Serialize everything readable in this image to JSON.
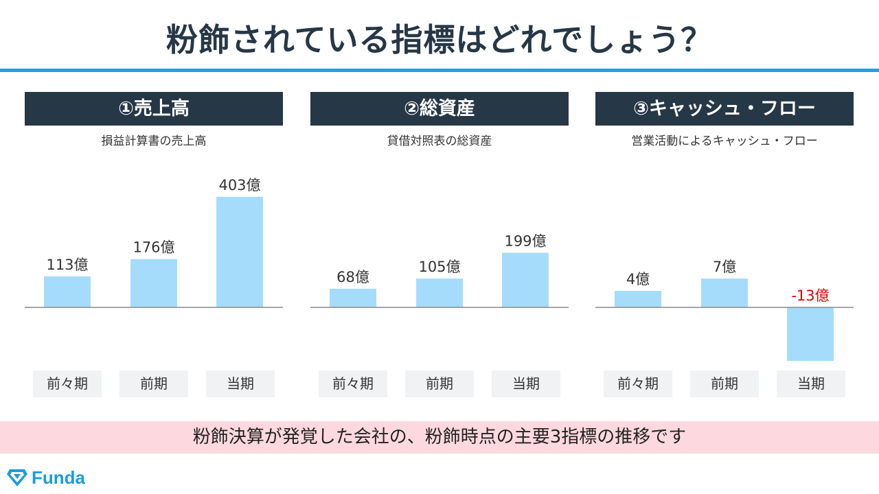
{
  "title": "粉飾されている指標はどれでしょう？",
  "footer": "粉飾決算が発覚した会社の、粉飾時点の主要3指標の推移です",
  "logo": {
    "text": "Funda",
    "icon": "gem-icon"
  },
  "colors": {
    "bar": "#a6dcfb",
    "negative_label": "#e00000",
    "header_bg": "#263746",
    "accent": "#1da1e6"
  },
  "chart_data": [
    {
      "type": "bar",
      "title": "①売上高",
      "subtitle": "損益計算書の売上高",
      "categories": [
        "前々期",
        "前期",
        "当期"
      ],
      "values": [
        113,
        176,
        403
      ],
      "labels": [
        "113億",
        "176億",
        "403億"
      ],
      "unit": "億"
    },
    {
      "type": "bar",
      "title": "②総資産",
      "subtitle": "貸借対照表の総資産",
      "categories": [
        "前々期",
        "前期",
        "当期"
      ],
      "values": [
        68,
        105,
        199
      ],
      "labels": [
        "68億",
        "105億",
        "199億"
      ],
      "unit": "億"
    },
    {
      "type": "bar",
      "title": "③キャッシュ・フロー",
      "subtitle": "営業活動によるキャッシュ・フロー",
      "categories": [
        "前々期",
        "前期",
        "当期"
      ],
      "values": [
        4,
        7,
        -13
      ],
      "labels": [
        "4億",
        "7億",
        "-13億"
      ],
      "unit": "億"
    }
  ]
}
